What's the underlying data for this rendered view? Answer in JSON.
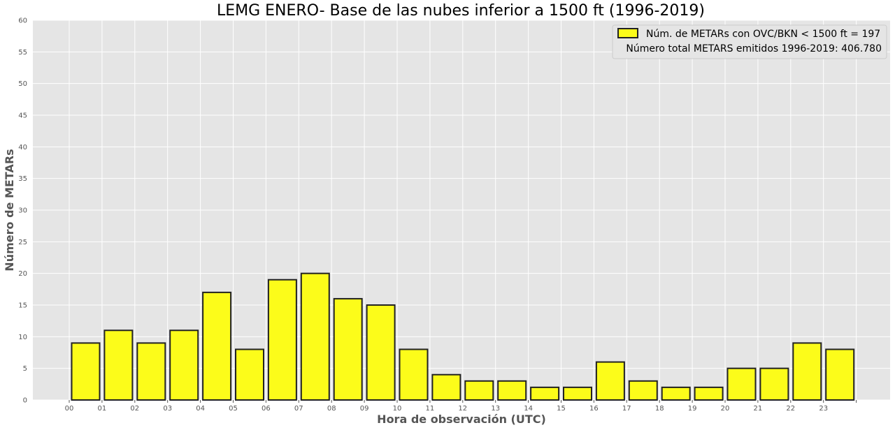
{
  "chart_data": {
    "type": "bar",
    "title": "LEMG ENERO- Base de las nubes inferior a 1500 ft (1996-2019)",
    "xlabel": "Hora de observación (UTC)",
    "ylabel": "Número de METARs",
    "categories": [
      "00",
      "01",
      "02",
      "03",
      "04",
      "05",
      "06",
      "07",
      "08",
      "09",
      "10",
      "11",
      "12",
      "13",
      "14",
      "15",
      "16",
      "17",
      "18",
      "19",
      "20",
      "21",
      "22",
      "23"
    ],
    "series": [
      {
        "name": "Núm. de METARs con OVC/BKN < 1500 ft = 197",
        "values": [
          9,
          11,
          9,
          11,
          17,
          8,
          19,
          20,
          16,
          15,
          8,
          4,
          3,
          3,
          2,
          2,
          6,
          3,
          2,
          2,
          5,
          5,
          9,
          8
        ]
      }
    ],
    "yticks": [
      0,
      5,
      10,
      15,
      20,
      25,
      30,
      35,
      40,
      45,
      50,
      55,
      60
    ],
    "ylim": [
      0,
      60
    ],
    "grid": true,
    "legend_position": "top-right",
    "annotation": "Número total METARS emitidos 1996-2019: 406.780",
    "colors": {
      "bar_fill": "#fcfc1a",
      "bar_edge": "#222222",
      "plot_background": "#e5e5e5",
      "grid": "#ffffff"
    }
  }
}
